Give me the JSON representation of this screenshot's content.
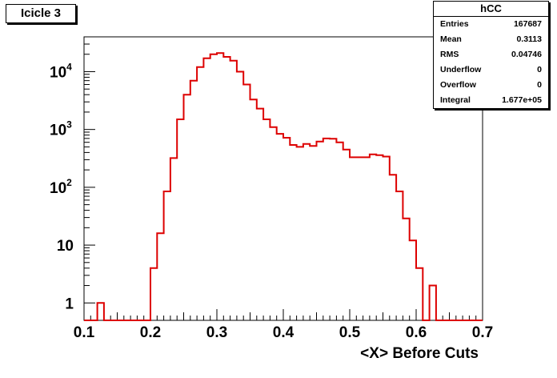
{
  "title_label": "Icicle 3",
  "stats": {
    "title": "hCC",
    "rows": [
      {
        "name": "Entries",
        "value": "167687"
      },
      {
        "name": "Mean",
        "value": "0.3113"
      },
      {
        "name": "RMS",
        "value": "0.04746"
      },
      {
        "name": "Underflow",
        "value": "0"
      },
      {
        "name": "Overflow",
        "value": "0"
      },
      {
        "name": "Integral",
        "value": "1.677e+05"
      }
    ]
  },
  "chart_data": {
    "type": "histogram",
    "title": "Icicle 3",
    "xlabel": "<X> Before Cuts",
    "ylabel": "",
    "xlim": [
      0.1,
      0.7
    ],
    "ylim": [
      0.5,
      40000
    ],
    "yscale": "log",
    "color": "#dd0000",
    "bin_width": 0.01,
    "x_ticks": [
      "0.1",
      "0.2",
      "0.3",
      "0.4",
      "0.5",
      "0.6",
      "0.7"
    ],
    "y_ticks": [
      {
        "value": 1,
        "label": "1"
      },
      {
        "value": 10,
        "label": "10"
      },
      {
        "value": 100,
        "label": "10",
        "exp": "2"
      },
      {
        "value": 1000,
        "label": "10",
        "exp": "3"
      },
      {
        "value": 10000,
        "label": "10",
        "exp": "4"
      }
    ],
    "bins": [
      {
        "x": 0.1,
        "y": 0
      },
      {
        "x": 0.11,
        "y": 0
      },
      {
        "x": 0.12,
        "y": 1
      },
      {
        "x": 0.13,
        "y": 0
      },
      {
        "x": 0.14,
        "y": 0
      },
      {
        "x": 0.15,
        "y": 0
      },
      {
        "x": 0.16,
        "y": 0
      },
      {
        "x": 0.17,
        "y": 0
      },
      {
        "x": 0.18,
        "y": 0
      },
      {
        "x": 0.19,
        "y": 0
      },
      {
        "x": 0.2,
        "y": 4
      },
      {
        "x": 0.21,
        "y": 16
      },
      {
        "x": 0.22,
        "y": 85
      },
      {
        "x": 0.23,
        "y": 320
      },
      {
        "x": 0.24,
        "y": 1500
      },
      {
        "x": 0.25,
        "y": 4000
      },
      {
        "x": 0.26,
        "y": 7000
      },
      {
        "x": 0.27,
        "y": 12000
      },
      {
        "x": 0.28,
        "y": 17000
      },
      {
        "x": 0.29,
        "y": 20000
      },
      {
        "x": 0.3,
        "y": 21000
      },
      {
        "x": 0.31,
        "y": 18000
      },
      {
        "x": 0.32,
        "y": 15500
      },
      {
        "x": 0.33,
        "y": 10000
      },
      {
        "x": 0.34,
        "y": 6000
      },
      {
        "x": 0.35,
        "y": 3300
      },
      {
        "x": 0.36,
        "y": 2300
      },
      {
        "x": 0.37,
        "y": 1500
      },
      {
        "x": 0.38,
        "y": 1100
      },
      {
        "x": 0.39,
        "y": 840
      },
      {
        "x": 0.4,
        "y": 720
      },
      {
        "x": 0.41,
        "y": 540
      },
      {
        "x": 0.42,
        "y": 500
      },
      {
        "x": 0.43,
        "y": 560
      },
      {
        "x": 0.44,
        "y": 520
      },
      {
        "x": 0.45,
        "y": 620
      },
      {
        "x": 0.46,
        "y": 700
      },
      {
        "x": 0.47,
        "y": 690
      },
      {
        "x": 0.48,
        "y": 600
      },
      {
        "x": 0.49,
        "y": 450
      },
      {
        "x": 0.5,
        "y": 330
      },
      {
        "x": 0.51,
        "y": 330
      },
      {
        "x": 0.52,
        "y": 330
      },
      {
        "x": 0.53,
        "y": 370
      },
      {
        "x": 0.54,
        "y": 360
      },
      {
        "x": 0.55,
        "y": 340
      },
      {
        "x": 0.56,
        "y": 165
      },
      {
        "x": 0.57,
        "y": 85
      },
      {
        "x": 0.58,
        "y": 29
      },
      {
        "x": 0.59,
        "y": 12
      },
      {
        "x": 0.6,
        "y": 4
      },
      {
        "x": 0.61,
        "y": 0
      },
      {
        "x": 0.62,
        "y": 2
      },
      {
        "x": 0.63,
        "y": 0
      },
      {
        "x": 0.64,
        "y": 0
      },
      {
        "x": 0.65,
        "y": 0
      },
      {
        "x": 0.66,
        "y": 0
      },
      {
        "x": 0.67,
        "y": 0
      },
      {
        "x": 0.68,
        "y": 0
      },
      {
        "x": 0.69,
        "y": 0
      }
    ]
  }
}
